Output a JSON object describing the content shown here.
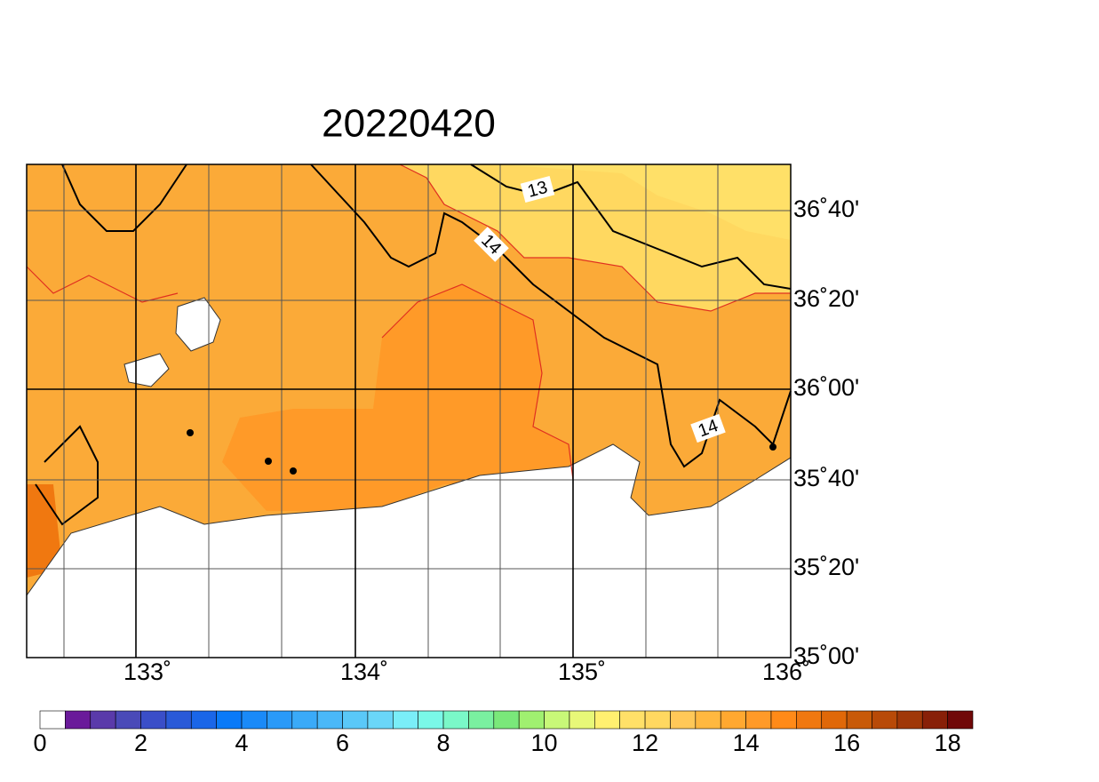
{
  "title": "20220420",
  "lat_labels": [
    "36˚40'",
    "36˚20'",
    "36˚00'",
    "35˚40'",
    "35˚20'",
    "35˚00'"
  ],
  "lon_labels": [
    "133˚",
    "134˚",
    "135˚",
    "136˚"
  ],
  "contour_labels": [
    "13",
    "14",
    "14"
  ],
  "colorbar": {
    "labels": [
      "0",
      "2",
      "4",
      "6",
      "8",
      "10",
      "12",
      "14",
      "16",
      "18"
    ],
    "colors": [
      "#ffffff",
      "#6a1a9a",
      "#5a3aaa",
      "#4a4ab8",
      "#3a4ec8",
      "#2a5ad8",
      "#1a66e8",
      "#0a7af8",
      "#1a8af8",
      "#2a9af8",
      "#3aaaf8",
      "#4ab8f8",
      "#5ac8f8",
      "#6ad6f8",
      "#7aeef8",
      "#7af8e8",
      "#7af8c8",
      "#7af0a0",
      "#7ae87a",
      "#a0f070",
      "#c8f878",
      "#e8f878",
      "#fff070",
      "#ffe068",
      "#ffd860",
      "#ffc858",
      "#ffb840",
      "#ffa830",
      "#ff9a28",
      "#ff8a18",
      "#f07810",
      "#e06808",
      "#c85a08",
      "#b84a08",
      "#a03808",
      "#882008",
      "#700808"
    ]
  }
}
